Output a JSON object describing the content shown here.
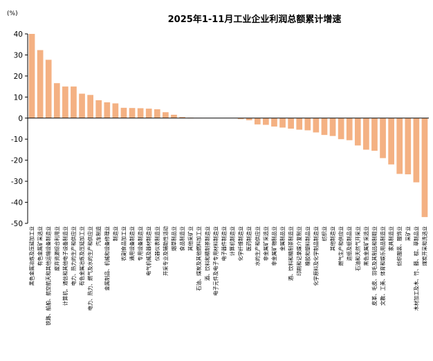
{
  "chart_data": {
    "type": "bar",
    "title": "2025年1-11月工业企业利润总额累计增速",
    "unit_label": "(%)",
    "ylim": [
      -50,
      40
    ],
    "yticks": [
      40,
      30,
      20,
      10,
      0,
      -10,
      -20,
      -30,
      -40,
      -50
    ],
    "bar_color": "#F4B183",
    "categories": [
      "黑色金属冶炼及压延加工业",
      "有色金属矿采选业",
      "铁路、船舶、航空航天和其他运输设备制造业",
      "废弃资源综合利用业",
      "计算机、通信和其他电子设备制造业",
      "电力、热力的生产和供应业",
      "有色金属冶炼及压延加工业",
      "电力、热力、燃气及水的生产和供应业",
      "汽车制造",
      "金属制品、机械和设备修理业",
      "制造业",
      "农副食品加工业",
      "通用设备制造业",
      "专用设备制造业",
      "电气机械及器材制造业",
      "仪器仪表制造业",
      "开采专业及辅助性活动",
      "烟草制品业",
      "食品制造业",
      "其他采矿业",
      "石油、煤炭及其他燃料加工业",
      "酒、饮料和精制茶制造业",
      "电子元件及电子专用材料制造业",
      "电子器件制造业",
      "计算机制造业",
      "化学纤维制造业",
      "医药制造业",
      "水的生产和供应业",
      "非金属矿采选业",
      "非金属矿物制品业",
      "金属制品业",
      "酒、饮料和精制茶制造业",
      "印刷和记录媒介复制业",
      "橡胶和塑料制品业",
      "化学原料及化学制品制造业",
      "纺织业",
      "其他制造业",
      "燃气生产和供应业",
      "造纸及纸制品业",
      "石油和天然气开采业",
      "黑色金属矿采选业",
      "皮革、毛皮、羽毛及其制品和制鞋业",
      "文教、工美、体育和娱乐用品制造业",
      "家具制造业",
      "纺织服装、服饰业",
      "采矿业",
      "木材加工及木、竹、藤、棕、草制品业",
      "煤炭开采和洗选业"
    ],
    "values": [
      40.0,
      32.3,
      27.7,
      16.6,
      15.0,
      15.0,
      11.6,
      11.0,
      8.5,
      7.5,
      7.0,
      4.9,
      4.8,
      4.7,
      4.5,
      4.2,
      2.8,
      1.6,
      0.5,
      0.2,
      0.1,
      0.0,
      0.0,
      0.0,
      0.0,
      -0.5,
      -1.0,
      -3.0,
      -3.2,
      -4.0,
      -4.5,
      -5.0,
      -5.5,
      -5.8,
      -6.8,
      -8.0,
      -8.5,
      -10.0,
      -10.5,
      -13.0,
      -15.0,
      -15.5,
      -19.0,
      -22.0,
      -26.5,
      -26.7,
      -30.5,
      -47.0
    ]
  }
}
